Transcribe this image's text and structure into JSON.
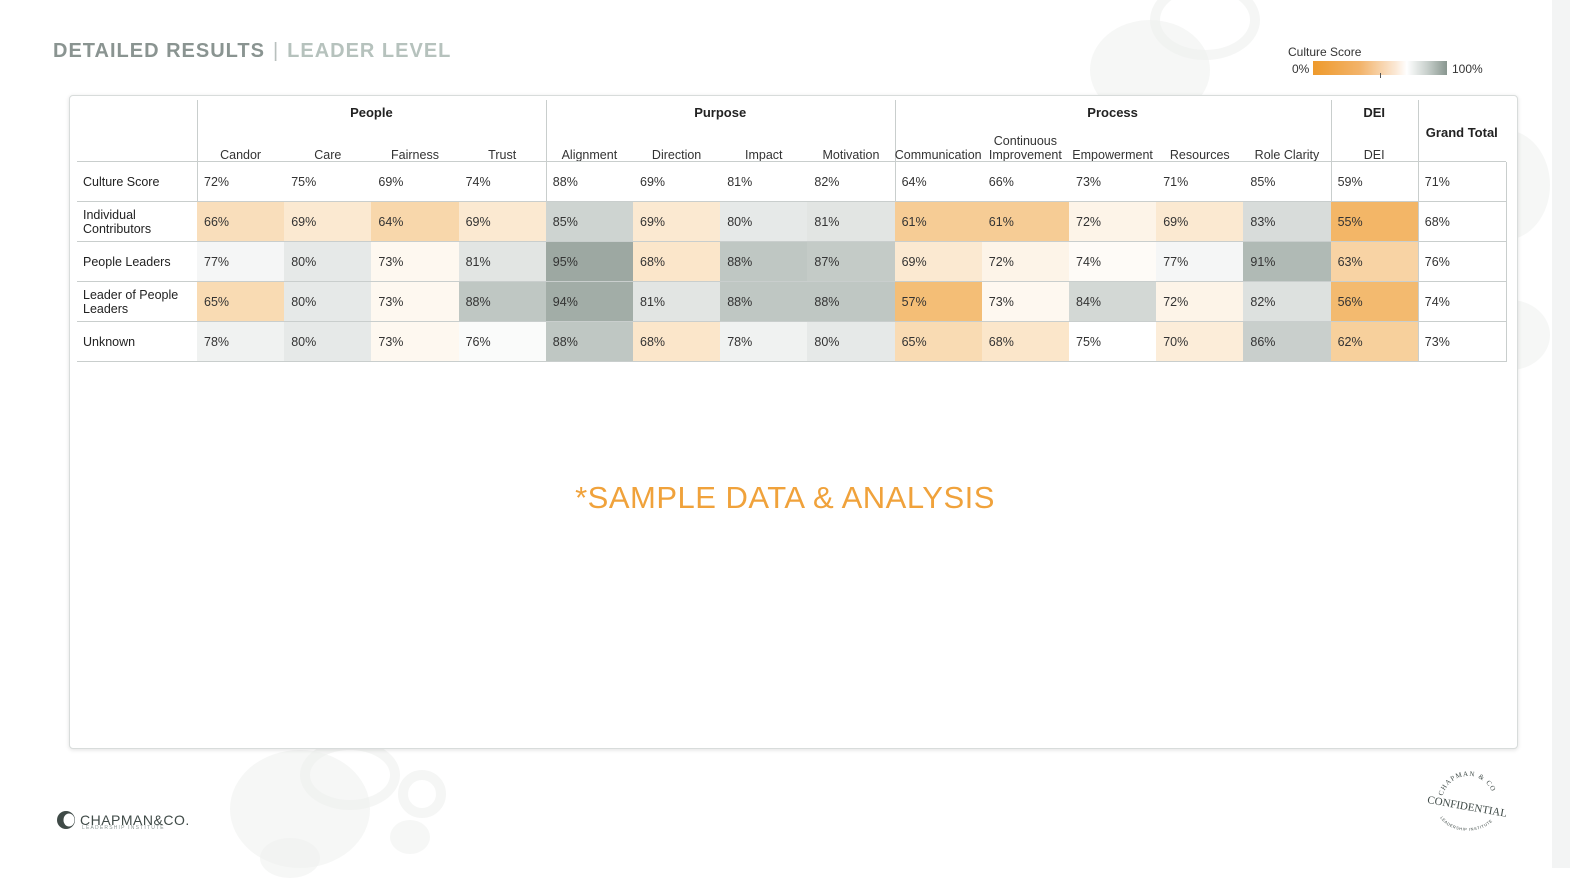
{
  "header": {
    "title_main": "DETAILED RESULTS",
    "separator": "|",
    "title_sub": "LEADER LEVEL"
  },
  "legend": {
    "title": "Culture Score",
    "min_label": "0%",
    "max_label": "100%"
  },
  "table": {
    "groups": [
      "People",
      "Purpose",
      "Process",
      "DEI"
    ],
    "grand_total_label": "Grand Total",
    "columns": [
      {
        "label": "Candor",
        "group": "People"
      },
      {
        "label": "Care",
        "group": "People"
      },
      {
        "label": "Fairness",
        "group": "People"
      },
      {
        "label": "Trust",
        "group": "People"
      },
      {
        "label": "Alignment",
        "group": "Purpose"
      },
      {
        "label": "Direction",
        "group": "Purpose"
      },
      {
        "label": "Impact",
        "group": "Purpose"
      },
      {
        "label": "Motivation",
        "group": "Purpose"
      },
      {
        "label": "Communication",
        "group": "Process"
      },
      {
        "label": "Continuous Improvement",
        "group": "Process"
      },
      {
        "label": "Empowerment",
        "group": "Process"
      },
      {
        "label": "Resources",
        "group": "Process"
      },
      {
        "label": "Role Clarity",
        "group": "Process"
      },
      {
        "label": "DEI",
        "group": "DEI"
      }
    ],
    "rows": [
      {
        "label": "Culture Score",
        "shaded": false,
        "values": [
          "72%",
          "75%",
          "69%",
          "74%",
          "88%",
          "69%",
          "81%",
          "82%",
          "64%",
          "66%",
          "73%",
          "71%",
          "85%",
          "59%"
        ],
        "total": "71%"
      },
      {
        "label": "Individual Contributors",
        "shaded": true,
        "values": [
          "66%",
          "69%",
          "64%",
          "69%",
          "85%",
          "69%",
          "80%",
          "81%",
          "61%",
          "61%",
          "72%",
          "69%",
          "83%",
          "55%"
        ],
        "total": "68%"
      },
      {
        "label": "People Leaders",
        "shaded": true,
        "values": [
          "77%",
          "80%",
          "73%",
          "81%",
          "95%",
          "68%",
          "88%",
          "87%",
          "69%",
          "72%",
          "74%",
          "77%",
          "91%",
          "63%"
        ],
        "total": "76%"
      },
      {
        "label": "Leader of People Leaders",
        "shaded": true,
        "values": [
          "65%",
          "80%",
          "73%",
          "88%",
          "94%",
          "81%",
          "88%",
          "88%",
          "57%",
          "73%",
          "84%",
          "72%",
          "82%",
          "56%"
        ],
        "total": "74%"
      },
      {
        "label": "Unknown",
        "shaded": true,
        "values": [
          "78%",
          "80%",
          "73%",
          "76%",
          "88%",
          "68%",
          "78%",
          "80%",
          "65%",
          "68%",
          "75%",
          "70%",
          "86%",
          "62%"
        ],
        "total": "73%"
      }
    ]
  },
  "colors": {
    "low": "#ee9a2c",
    "mid": "#ffffff",
    "high": "#88968f",
    "watermark": "#f0a23b"
  },
  "watermark": "*SAMPLE DATA & ANALYSIS",
  "footer": {
    "logo_name": "CHAPMAN&CO.",
    "logo_sub": "LEADERSHIP INSTITUTE",
    "stamp_top": "CHAPMAN & CO",
    "stamp_main": "CONFIDENTIAL",
    "stamp_bottom": "LEADERSHIP INSTITUTE"
  }
}
